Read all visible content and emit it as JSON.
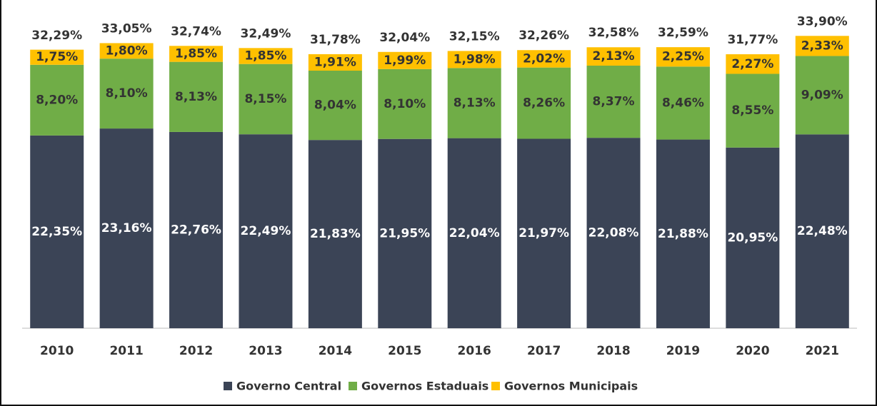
{
  "chart_data": {
    "type": "stacked-bar",
    "categories": [
      "2010",
      "2011",
      "2012",
      "2013",
      "2014",
      "2015",
      "2016",
      "2017",
      "2018",
      "2019",
      "2020",
      "2021"
    ],
    "series": [
      {
        "name": "Governo Central",
        "color": "#3b4456",
        "values": [
          22.35,
          23.16,
          22.76,
          22.49,
          21.83,
          21.95,
          22.04,
          21.97,
          22.08,
          21.88,
          20.95,
          22.48
        ],
        "value_labels": [
          "22,35%",
          "23,16%",
          "22,76%",
          "22,49%",
          "21,83%",
          "21,95%",
          "22,04%",
          "21,97%",
          "22,08%",
          "21,88%",
          "20,95%",
          "22,48%"
        ]
      },
      {
        "name": "Governos Estaduais",
        "color": "#70ad47",
        "values": [
          8.2,
          8.1,
          8.13,
          8.15,
          8.04,
          8.1,
          8.13,
          8.26,
          8.37,
          8.46,
          8.55,
          9.09
        ],
        "value_labels": [
          "8,20%",
          "8,10%",
          "8,13%",
          "8,15%",
          "8,04%",
          "8,10%",
          "8,13%",
          "8,26%",
          "8,37%",
          "8,46%",
          "8,55%",
          "9,09%"
        ]
      },
      {
        "name": "Governos Municipais",
        "color": "#ffc000",
        "values": [
          1.75,
          1.8,
          1.85,
          1.85,
          1.91,
          1.99,
          1.98,
          2.02,
          2.13,
          2.25,
          2.27,
          2.33
        ],
        "value_labels": [
          "1,75%",
          "1,80%",
          "1,85%",
          "1,85%",
          "1,91%",
          "1,99%",
          "1,98%",
          "2,02%",
          "2,13%",
          "2,25%",
          "2,27%",
          "2,33%"
        ]
      }
    ],
    "totals": [
      32.29,
      33.05,
      32.74,
      32.49,
      31.78,
      32.04,
      32.15,
      32.26,
      32.58,
      32.59,
      31.77,
      33.9
    ],
    "total_labels": [
      "32,29%",
      "33,05%",
      "32,74%",
      "32,49%",
      "31,78%",
      "32,04%",
      "32,15%",
      "32,26%",
      "32,58%",
      "32,59%",
      "31,77%",
      "33,90%"
    ],
    "ylim": [
      0,
      35
    ]
  }
}
